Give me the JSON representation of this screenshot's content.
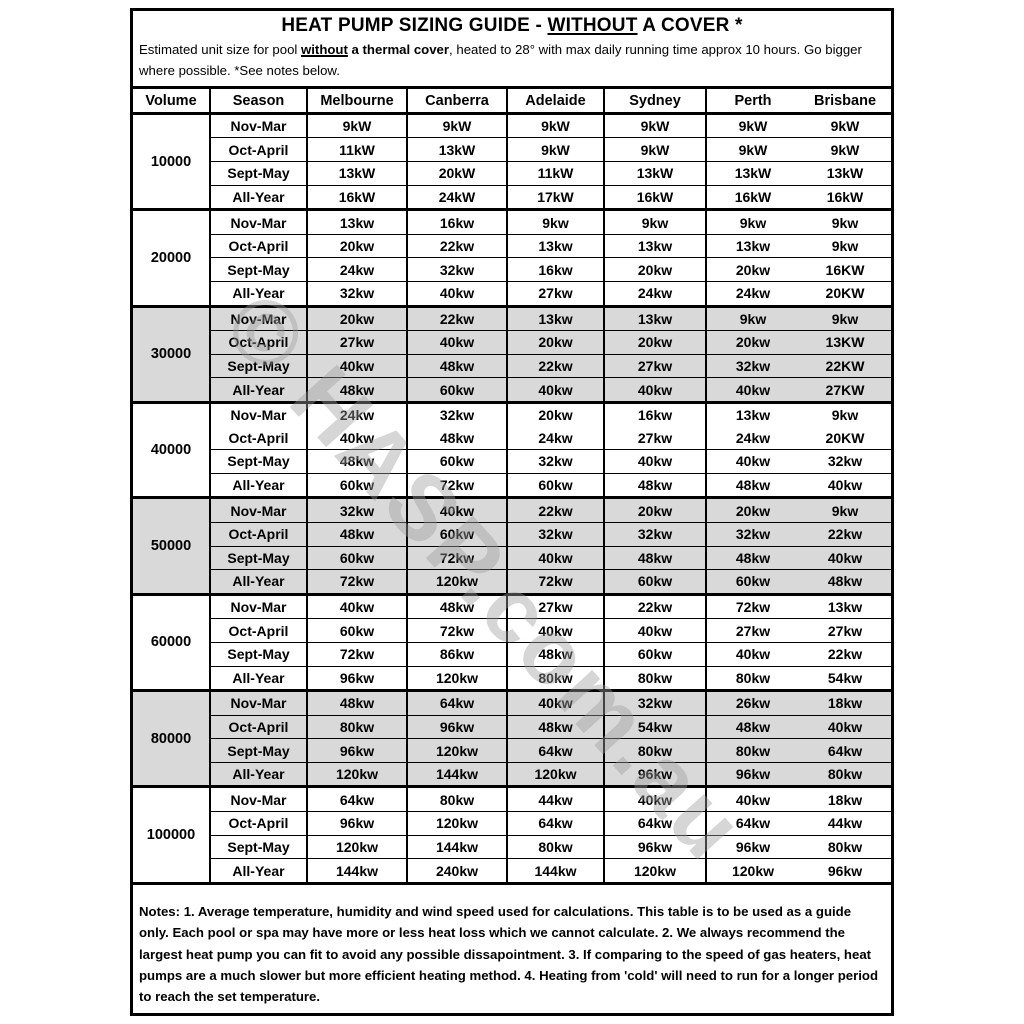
{
  "header": {
    "title_prefix": "HEAT PUMP SIZING GUIDE - ",
    "title_underlined": "WITHOUT",
    "title_suffix": " A COVER *",
    "subtitle_part1": "Estimated unit size for pool ",
    "subtitle_underlined_bold": "without",
    "subtitle_bold": " a thermal cover",
    "subtitle_part2": ", heated to 28° with max daily running time approx 10 hours. Go bigger where possible. *See notes below."
  },
  "watermark": {
    "text": "© HASP.com.au"
  },
  "colors": {
    "shaded_row_bg": "#d9d9d9",
    "border": "#000000",
    "watermark_color": "#9e9e9e",
    "background": "#ffffff"
  },
  "table": {
    "columns": [
      "Volume",
      "Season",
      "Melbourne",
      "Canberra",
      "Adelaide",
      "Sydney",
      "Perth",
      "Brisbane"
    ],
    "blocks": [
      {
        "volume": "10000",
        "shaded": false,
        "rows": [
          {
            "season": "Nov-Mar",
            "values": [
              "9kW",
              "9kW",
              "9kW",
              "9kW",
              "9kW",
              "9kW"
            ]
          },
          {
            "season": "Oct-April",
            "values": [
              "11kW",
              "13kW",
              "9kW",
              "9kW",
              "9kW",
              "9kW"
            ]
          },
          {
            "season": "Sept-May",
            "values": [
              "13kW",
              "20kW",
              "11kW",
              "13kW",
              "13kW",
              "13kW"
            ]
          },
          {
            "season": "All-Year",
            "values": [
              "16kW",
              "24kW",
              "17kW",
              "16kW",
              "16kW",
              "16kW"
            ]
          }
        ]
      },
      {
        "volume": "20000",
        "shaded": false,
        "rows": [
          {
            "season": "Nov-Mar",
            "values": [
              "13kw",
              "16kw",
              "9kw",
              "9kw",
              "9kw",
              "9kw"
            ]
          },
          {
            "season": "Oct-April",
            "values": [
              "20kw",
              "22kw",
              "13kw",
              "13kw",
              "13kw",
              "9kw"
            ]
          },
          {
            "season": "Sept-May",
            "values": [
              "24kw",
              "32kw",
              "16kw",
              "20kw",
              "20kw",
              "16KW"
            ]
          },
          {
            "season": "All-Year",
            "values": [
              "32kw",
              "40kw",
              "27kw",
              "24kw",
              "24kw",
              "20KW"
            ]
          }
        ]
      },
      {
        "volume": "30000",
        "shaded": true,
        "rows": [
          {
            "season": "Nov-Mar",
            "values": [
              "20kw",
              "22kw",
              "13kw",
              "13kw",
              "9kw",
              "9kw"
            ]
          },
          {
            "season": "Oct-April",
            "values": [
              "27kw",
              "40kw",
              "20kw",
              "20kw",
              "20kw",
              "13KW"
            ]
          },
          {
            "season": "Sept-May",
            "values": [
              "40kw",
              "48kw",
              "22kw",
              "27kw",
              "32kw",
              "22KW"
            ]
          },
          {
            "season": "All-Year",
            "values": [
              "48kw",
              "60kw",
              "40kw",
              "40kw",
              "40kw",
              "27KW"
            ]
          }
        ]
      },
      {
        "volume": "40000",
        "shaded": false,
        "rows": [
          {
            "season": "Nov-Mar",
            "values": [
              "24kw",
              "32kw",
              "20kw",
              "16kw",
              "13kw",
              "9kw"
            ]
          },
          {
            "season": "Oct-April",
            "values": [
              "40kw",
              "48kw",
              "24kw",
              "27kw",
              "24kw",
              "20KW"
            ],
            "no_top_border": true
          },
          {
            "season": "Sept-May",
            "values": [
              "48kw",
              "60kw",
              "32kw",
              "40kw",
              "40kw",
              "32kw"
            ]
          },
          {
            "season": "All-Year",
            "values": [
              "60kw",
              "72kw",
              "60kw",
              "48kw",
              "48kw",
              "40kw"
            ]
          }
        ]
      },
      {
        "volume": "50000",
        "shaded": true,
        "rows": [
          {
            "season": "Nov-Mar",
            "values": [
              "32kw",
              "40kw",
              "22kw",
              "20kw",
              "20kw",
              "9kw"
            ]
          },
          {
            "season": "Oct-April",
            "values": [
              "48kw",
              "60kw",
              "32kw",
              "32kw",
              "32kw",
              "22kw"
            ]
          },
          {
            "season": "Sept-May",
            "values": [
              "60kw",
              "72kw",
              "40kw",
              "48kw",
              "48kw",
              "40kw"
            ]
          },
          {
            "season": "All-Year",
            "values": [
              "72kw",
              "120kw",
              "72kw",
              "60kw",
              "60kw",
              "48kw"
            ]
          }
        ]
      },
      {
        "volume": "60000",
        "shaded": false,
        "rows": [
          {
            "season": "Nov-Mar",
            "values": [
              "40kw",
              "48kw",
              "27kw",
              "22kw",
              "72kw",
              "13kw"
            ]
          },
          {
            "season": "Oct-April",
            "values": [
              "60kw",
              "72kw",
              "40kw",
              "40kw",
              "27kw",
              "27kw"
            ]
          },
          {
            "season": "Sept-May",
            "values": [
              "72kw",
              "86kw",
              "48kw",
              "60kw",
              "40kw",
              "22kw"
            ]
          },
          {
            "season": "All-Year",
            "values": [
              "96kw",
              "120kw",
              "80kw",
              "80kw",
              "80kw",
              "54kw"
            ]
          }
        ]
      },
      {
        "volume": "80000",
        "shaded": true,
        "rows": [
          {
            "season": "Nov-Mar",
            "values": [
              "48kw",
              "64kw",
              "40kw",
              "32kw",
              "26kw",
              "18kw"
            ]
          },
          {
            "season": "Oct-April",
            "values": [
              "80kw",
              "96kw",
              "48kw",
              "54kw",
              "48kw",
              "40kw"
            ]
          },
          {
            "season": "Sept-May",
            "values": [
              "96kw",
              "120kw",
              "64kw",
              "80kw",
              "80kw",
              "64kw"
            ]
          },
          {
            "season": "All-Year",
            "values": [
              "120kw",
              "144kw",
              "120kw",
              "96kw",
              "96kw",
              "80kw"
            ]
          }
        ]
      },
      {
        "volume": "100000",
        "shaded": false,
        "rows": [
          {
            "season": "Nov-Mar",
            "values": [
              "64kw",
              "80kw",
              "44kw",
              "40kw",
              "40kw",
              "18kw"
            ]
          },
          {
            "season": "Oct-April",
            "values": [
              "96kw",
              "120kw",
              "64kw",
              "64kw",
              "64kw",
              "44kw"
            ]
          },
          {
            "season": "Sept-May",
            "values": [
              "120kw",
              "144kw",
              "80kw",
              "96kw",
              "96kw",
              "80kw"
            ]
          },
          {
            "season": "All-Year",
            "values": [
              "144kw",
              "240kw",
              "144kw",
              "120kw",
              "120kw",
              "96kw"
            ]
          }
        ]
      }
    ]
  },
  "notes": {
    "text": "Notes: 1. Average temperature, humidity and wind speed used for calculations. This table is to be used as a guide only. Each pool or spa may have more or less heat loss which we cannot calculate. 2. We always recommend the largest heat pump you can fit to avoid any possible dissapointment. 3. If comparing to the speed of gas heaters, heat pumps are a much slower but more efficient heating method. 4. Heating from 'cold' will need to run for a longer period to reach the set temperature."
  }
}
